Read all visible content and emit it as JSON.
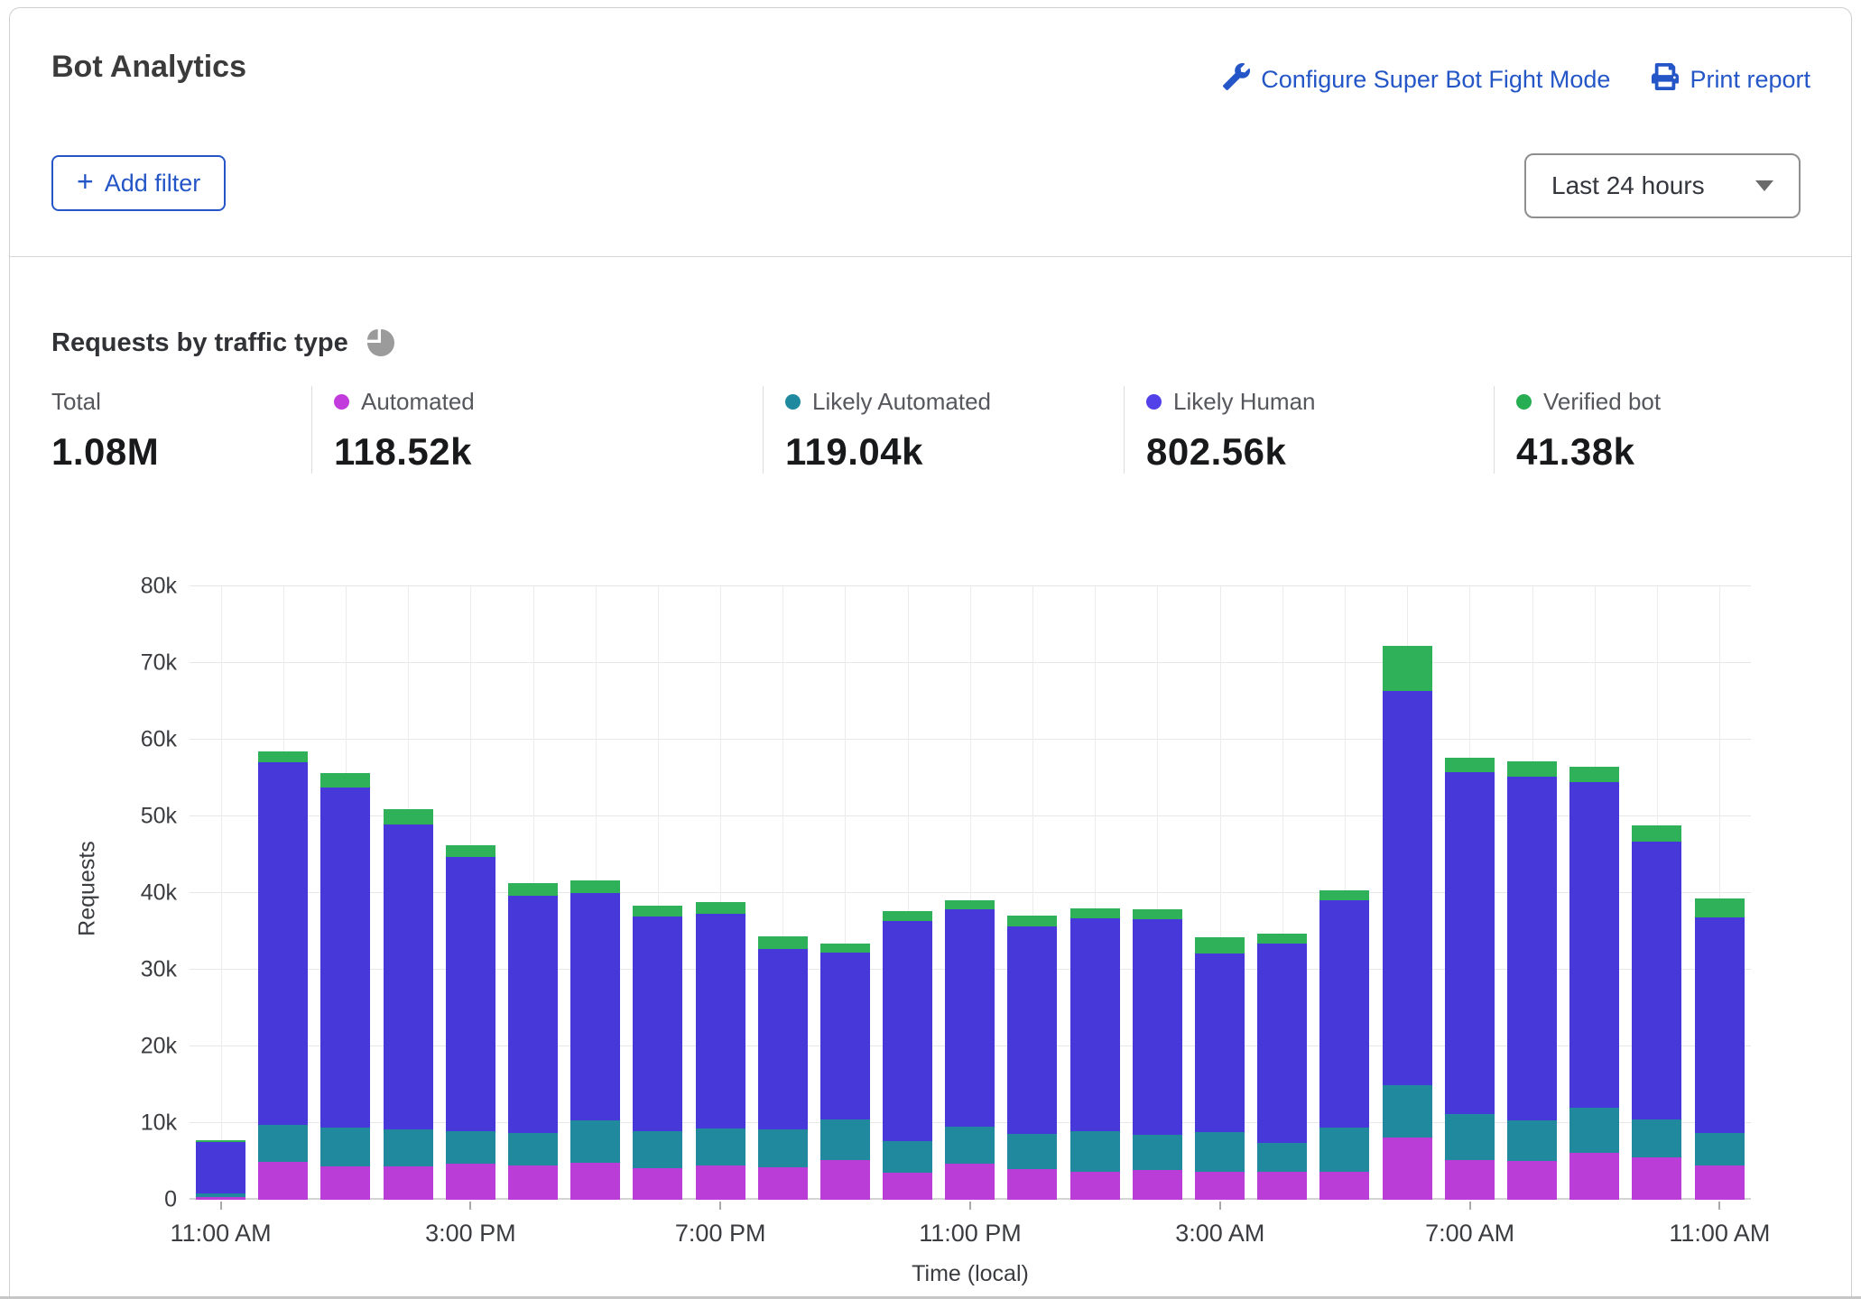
{
  "header": {
    "title": "Bot Analytics",
    "actions": [
      {
        "icon": "wrench-icon",
        "label": "Configure Super Bot Fight Mode"
      },
      {
        "icon": "printer-icon",
        "label": "Print report"
      }
    ],
    "add_filter": {
      "icon": "plus-icon",
      "label": "Add filter"
    },
    "time_range": {
      "value": "Last 24 hours",
      "icon": "chevron-down-icon"
    }
  },
  "section": {
    "title": "Requests by traffic type",
    "icon": "pie-chart-icon"
  },
  "stats": [
    {
      "label": "Total",
      "value": "1.08M",
      "dot_color": ""
    },
    {
      "label": "Automated",
      "value": "118.52k",
      "dot_color": "#c13bdd"
    },
    {
      "label": "Likely Automated",
      "value": "119.04k",
      "dot_color": "#1f8a9f"
    },
    {
      "label": "Likely Human",
      "value": "802.56k",
      "dot_color": "#5240e8"
    },
    {
      "label": "Verified bot",
      "value": "41.38k",
      "dot_color": "#27ae52"
    }
  ],
  "chart_data": {
    "type": "bar",
    "stacked": true,
    "title": "Requests by traffic type",
    "xlabel": "Time (local)",
    "ylabel": "Requests",
    "unit": "thousands of requests per hour",
    "ylim": [
      0,
      80
    ],
    "grid": true,
    "y_ticks": [
      {
        "v": 0,
        "label": "0"
      },
      {
        "v": 10,
        "label": "10k"
      },
      {
        "v": 20,
        "label": "20k"
      },
      {
        "v": 30,
        "label": "30k"
      },
      {
        "v": 40,
        "label": "40k"
      },
      {
        "v": 50,
        "label": "50k"
      },
      {
        "v": 60,
        "label": "60k"
      },
      {
        "v": 70,
        "label": "70k"
      },
      {
        "v": 80,
        "label": "80k"
      }
    ],
    "x_tick_labels": [
      {
        "index": 0,
        "label": "11:00 AM"
      },
      {
        "index": 4,
        "label": "3:00 PM"
      },
      {
        "index": 8,
        "label": "7:00 PM"
      },
      {
        "index": 12,
        "label": "11:00 PM"
      },
      {
        "index": 16,
        "label": "3:00 AM"
      },
      {
        "index": 20,
        "label": "7:00 AM"
      },
      {
        "index": 24,
        "label": "11:00 AM"
      }
    ],
    "series": [
      {
        "name": "Automated",
        "color": "#bb3dd8",
        "values": [
          0.3,
          4.9,
          4.4,
          4.3,
          4.7,
          4.5,
          4.8,
          4.1,
          4.5,
          4.2,
          5.2,
          3.5,
          4.7,
          4.0,
          3.7,
          3.9,
          3.6,
          3.6,
          3.7,
          8.1,
          5.2,
          5.1,
          6.1,
          5.5,
          4.5
        ]
      },
      {
        "name": "Likely Automated",
        "color": "#21899d",
        "values": [
          0.5,
          4.9,
          5.0,
          4.9,
          4.2,
          4.2,
          5.6,
          4.9,
          4.8,
          5.0,
          5.3,
          4.2,
          4.8,
          4.6,
          5.2,
          4.6,
          5.2,
          3.8,
          5.7,
          6.8,
          6.0,
          5.3,
          5.9,
          5.0,
          4.2
        ]
      },
      {
        "name": "Likely Human",
        "color": "#4638d9",
        "values": [
          6.7,
          47.3,
          44.4,
          39.8,
          35.8,
          30.9,
          29.6,
          27.9,
          28.0,
          23.5,
          21.7,
          28.7,
          28.4,
          27.0,
          27.8,
          28.1,
          23.3,
          26.0,
          29.7,
          51.5,
          44.6,
          44.8,
          42.5,
          36.2,
          28.1
        ]
      },
      {
        "name": "Verified bot",
        "color": "#2eb158",
        "values": [
          0.3,
          1.4,
          1.8,
          1.9,
          1.5,
          1.7,
          1.6,
          1.5,
          1.5,
          1.7,
          1.2,
          1.2,
          1.2,
          1.5,
          1.3,
          1.3,
          2.1,
          1.3,
          1.3,
          5.8,
          1.9,
          2.0,
          2.0,
          2.1,
          2.5
        ]
      }
    ]
  }
}
